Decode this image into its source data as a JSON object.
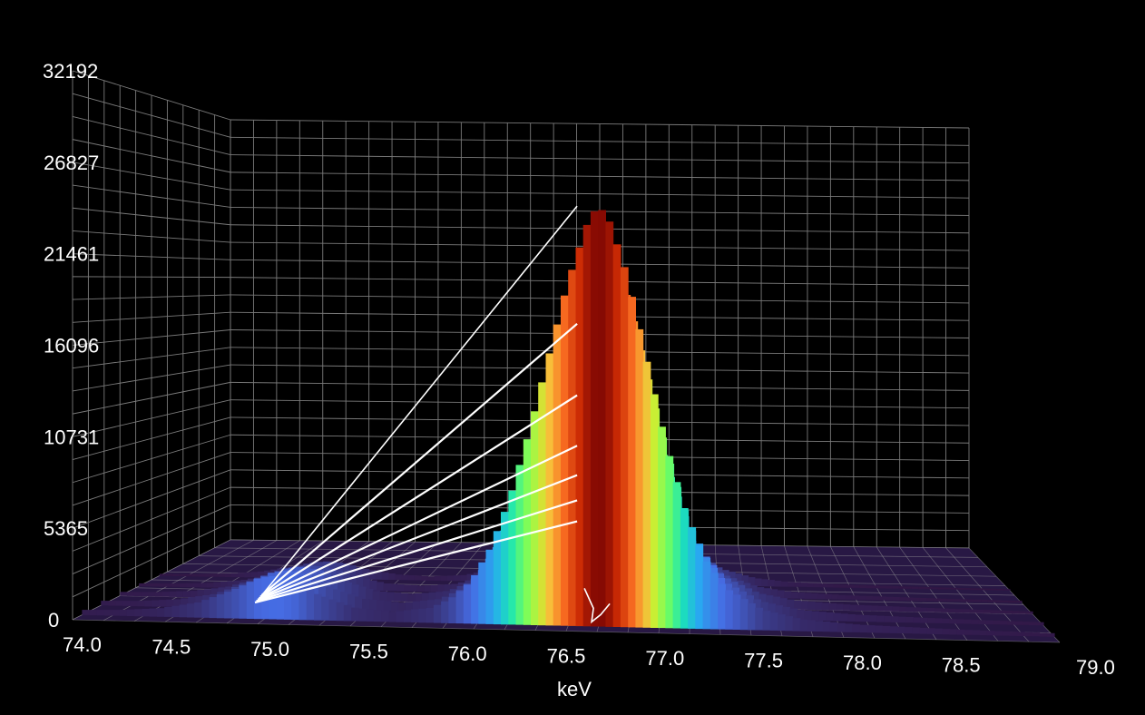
{
  "chart_data": {
    "type": "bar",
    "style": "3d-histogram",
    "title": "",
    "xlabel": "keV",
    "ylabel": "",
    "xlim": [
      74.0,
      79.0
    ],
    "ylim": [
      0,
      32192
    ],
    "x_ticks": [
      "74.0",
      "74.5",
      "75.0",
      "75.5",
      "76.0",
      "76.5",
      "77.0",
      "77.5",
      "78.0",
      "78.5",
      "79.0"
    ],
    "y_ticks": [
      "0",
      "5365",
      "10731",
      "16096",
      "21461",
      "26827",
      "32192"
    ],
    "grid": true,
    "colormap": "turbo",
    "background": "#000000",
    "peaks": [
      {
        "center_keV": 74.97,
        "height": 2600
      },
      {
        "center_keV": 76.63,
        "height": 25000
      }
    ],
    "series": [
      {
        "x": [
          74.0,
          74.2,
          74.4,
          74.6,
          74.8,
          74.9,
          75.0,
          75.1,
          75.2,
          75.4,
          75.6,
          75.8,
          75.9,
          76.0,
          76.1,
          76.2,
          76.3,
          76.4,
          76.5,
          76.6,
          76.65,
          76.7,
          76.8,
          76.9,
          77.0,
          77.1,
          77.2,
          77.3,
          77.5,
          77.7,
          78.0,
          78.5,
          79.0
        ],
        "values": [
          300,
          350,
          500,
          900,
          1800,
          2400,
          2600,
          2300,
          1600,
          800,
          600,
          900,
          1500,
          2500,
          4500,
          7500,
          11500,
          16000,
          20500,
          24000,
          25000,
          24500,
          21000,
          16000,
          11000,
          7000,
          4200,
          2500,
          1200,
          700,
          450,
          300,
          200
        ]
      }
    ]
  }
}
